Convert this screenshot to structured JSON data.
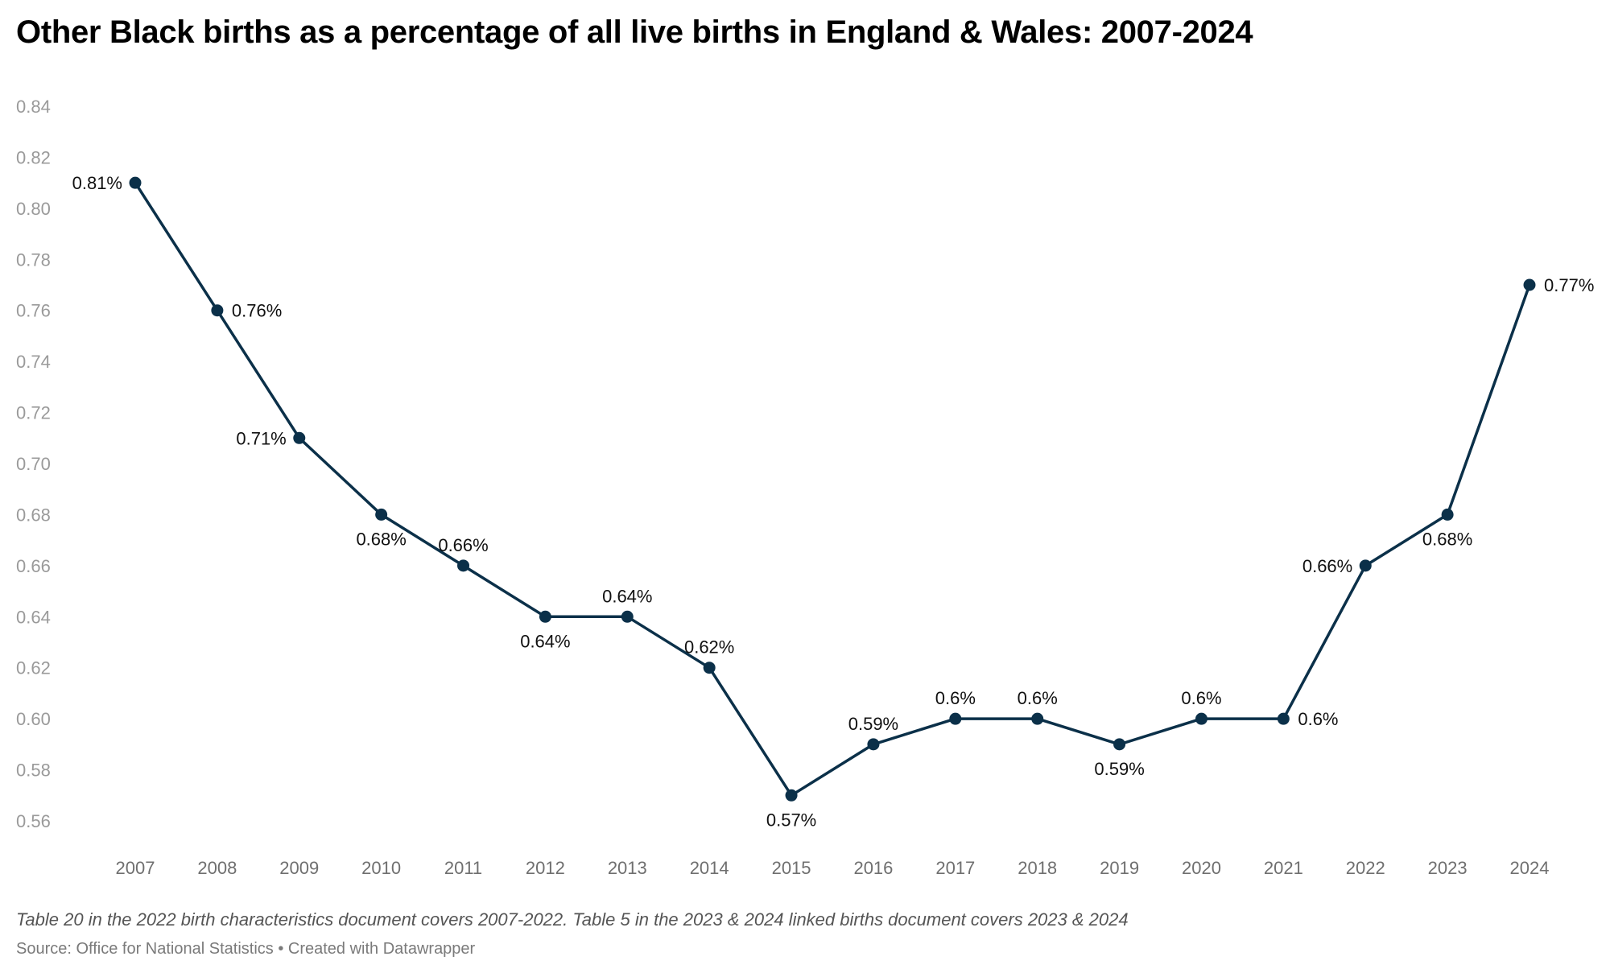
{
  "header": {
    "title": "Other Black births as a percentage of all live births in England & Wales: 2007-2024"
  },
  "footer": {
    "note": "Table 20 in the 2022 birth characteristics document covers 2007-2022. Table 5 in the 2023 & 2024 linked births document covers 2023 & 2024",
    "source": "Source: Office for National Statistics • Created with Datawrapper"
  },
  "colors": {
    "line": "#0b3049",
    "point": "#0b3049"
  },
  "chart_data": {
    "type": "line",
    "title": "Other Black births as a percentage of all live births in England & Wales: 2007-2024",
    "xlabel": "",
    "ylabel": "",
    "x": [
      "2007",
      "2008",
      "2009",
      "2010",
      "2011",
      "2012",
      "2013",
      "2014",
      "2015",
      "2016",
      "2017",
      "2018",
      "2019",
      "2020",
      "2021",
      "2022",
      "2023",
      "2024"
    ],
    "series": [
      {
        "name": "Other Black births (% of all live births)",
        "values": [
          0.81,
          0.76,
          0.71,
          0.68,
          0.66,
          0.64,
          0.64,
          0.62,
          0.57,
          0.59,
          0.6,
          0.6,
          0.59,
          0.6,
          0.6,
          0.66,
          0.68,
          0.77
        ],
        "labels": [
          "0.81%",
          "0.76%",
          "0.71%",
          "0.68%",
          "0.66%",
          "0.64%",
          "0.64%",
          "0.62%",
          "0.57%",
          "0.59%",
          "0.6%",
          "0.6%",
          "0.59%",
          "0.6%",
          "0.6%",
          "0.66%",
          "0.68%",
          "0.77%"
        ],
        "label_positions": [
          "left",
          "right",
          "left",
          "below",
          "above",
          "below",
          "above",
          "above",
          "below",
          "above",
          "above",
          "above",
          "below",
          "above",
          "right",
          "left",
          "below",
          "right"
        ]
      }
    ],
    "yticks": [
      "0.84",
      "0.82",
      "0.80",
      "0.78",
      "0.76",
      "0.74",
      "0.72",
      "0.70",
      "0.68",
      "0.66",
      "0.64",
      "0.62",
      "0.60",
      "0.58",
      "0.56"
    ],
    "ylim": [
      0.56,
      0.84
    ],
    "grid": false,
    "legend": "none"
  }
}
